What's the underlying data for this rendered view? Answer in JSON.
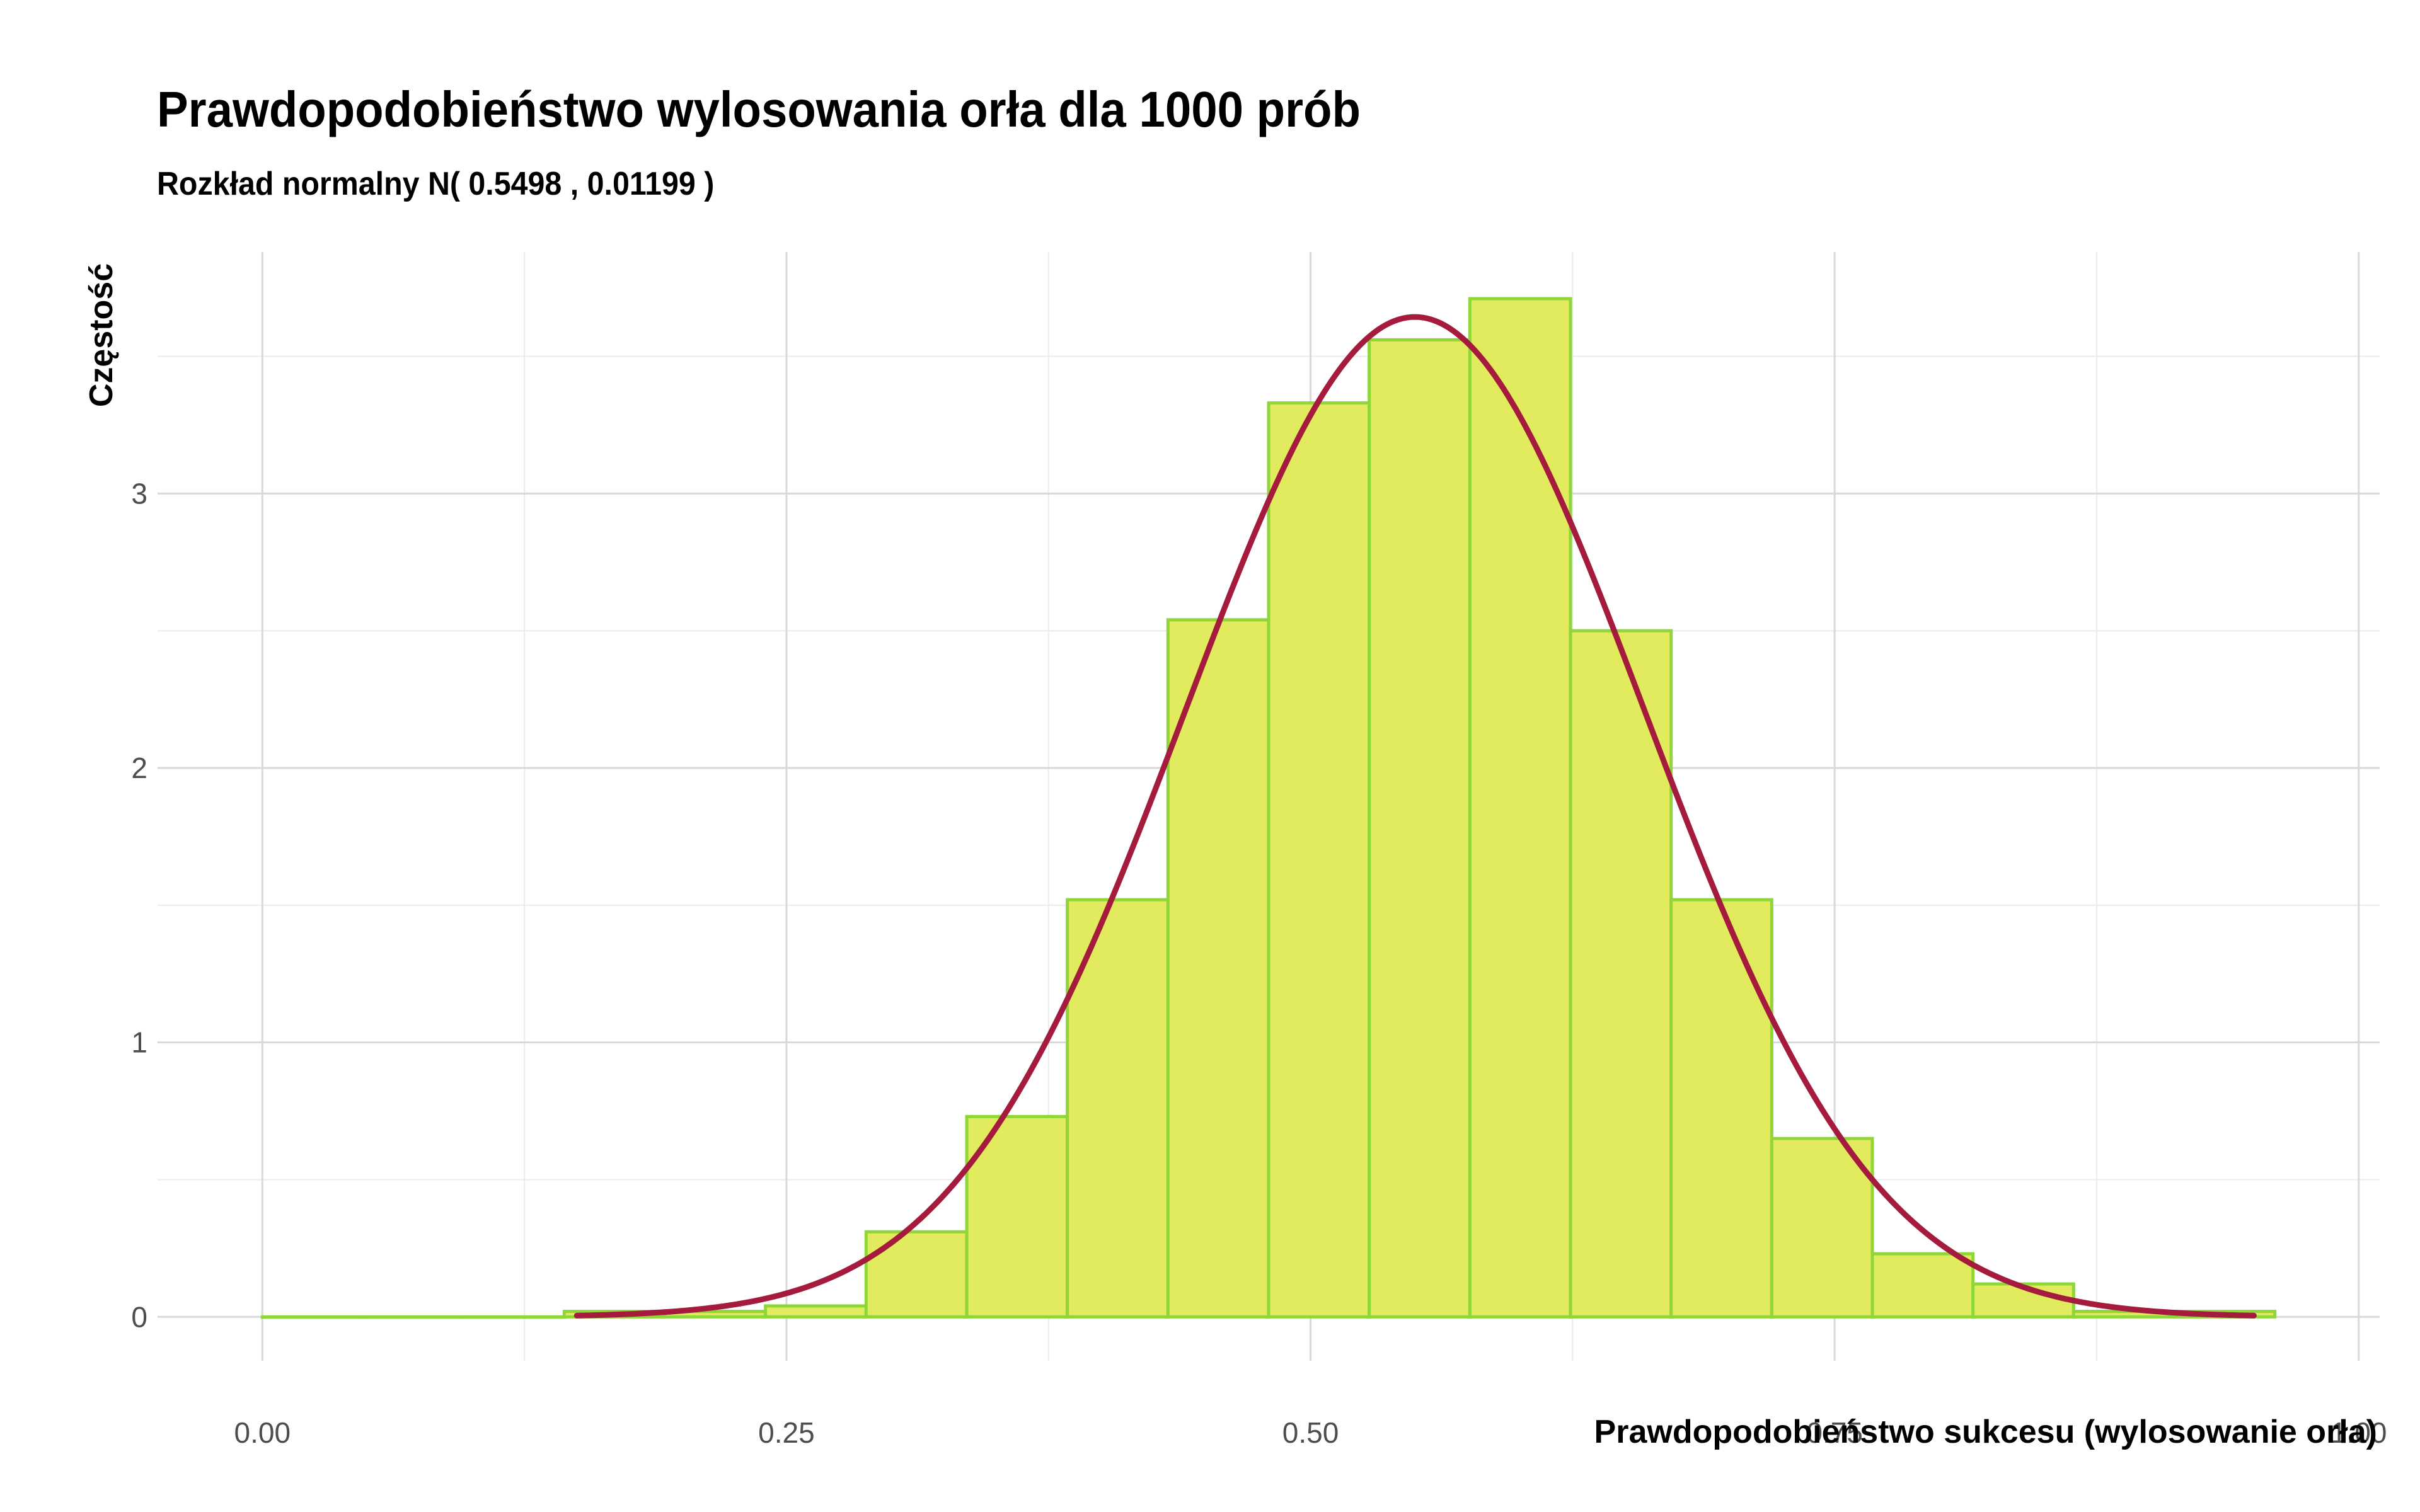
{
  "title": "Prawdopodobieństwo wylosowania orła dla 1000 prób",
  "subtitle": "Rozkład normalny N( 0.5498 ,  0.01199 )",
  "colors": {
    "bar_fill": "#e2ea5e",
    "bar_stroke": "#8fd638",
    "curve": "#a51b3d",
    "grid_major": "#d9d9d9",
    "grid_minor": "#ebebeb",
    "tick_text": "#4d4d4d",
    "axis_title": "#000000"
  },
  "chart_data": {
    "type": "bar",
    "xlabel": "Prawdopodobieństwo sukcesu (wylosowanie orła)",
    "ylabel": "Częstość",
    "xlim": [
      -0.05,
      1.01
    ],
    "ylim": [
      -0.16,
      3.88
    ],
    "x_ticks": [
      0,
      0.25,
      0.5,
      0.75,
      1
    ],
    "x_tick_labels": [
      "0.00",
      "0.25",
      "0.50",
      "0.75",
      "1.00"
    ],
    "y_ticks": [
      0,
      1,
      2,
      3
    ],
    "y_tick_labels": [
      "0",
      "1",
      "2",
      "3"
    ],
    "grid": true,
    "bins": [
      {
        "x0": 0.0,
        "x1": 0.048,
        "density": 0.0
      },
      {
        "x0": 0.048,
        "x1": 0.096,
        "density": 0.0
      },
      {
        "x0": 0.096,
        "x1": 0.144,
        "density": 0.0
      },
      {
        "x0": 0.144,
        "x1": 0.192,
        "density": 0.02
      },
      {
        "x0": 0.192,
        "x1": 0.24,
        "density": 0.02
      },
      {
        "x0": 0.24,
        "x1": 0.288,
        "density": 0.04
      },
      {
        "x0": 0.288,
        "x1": 0.336,
        "density": 0.31
      },
      {
        "x0": 0.336,
        "x1": 0.384,
        "density": 0.73
      },
      {
        "x0": 0.384,
        "x1": 0.432,
        "density": 1.52
      },
      {
        "x0": 0.432,
        "x1": 0.48,
        "density": 2.54
      },
      {
        "x0": 0.48,
        "x1": 0.528,
        "density": 3.33
      },
      {
        "x0": 0.528,
        "x1": 0.576,
        "density": 3.56
      },
      {
        "x0": 0.576,
        "x1": 0.624,
        "density": 3.71
      },
      {
        "x0": 0.624,
        "x1": 0.672,
        "density": 2.5
      },
      {
        "x0": 0.672,
        "x1": 0.72,
        "density": 1.52
      },
      {
        "x0": 0.72,
        "x1": 0.768,
        "density": 0.65
      },
      {
        "x0": 0.768,
        "x1": 0.816,
        "density": 0.23
      },
      {
        "x0": 0.816,
        "x1": 0.864,
        "density": 0.12
      },
      {
        "x0": 0.864,
        "x1": 0.912,
        "density": 0.02
      },
      {
        "x0": 0.912,
        "x1": 0.96,
        "density": 0.02
      }
    ],
    "curve": {
      "type": "normal_density",
      "mean": 0.5498,
      "variance": 0.01199,
      "x_range": [
        0.15,
        0.95
      ]
    }
  }
}
